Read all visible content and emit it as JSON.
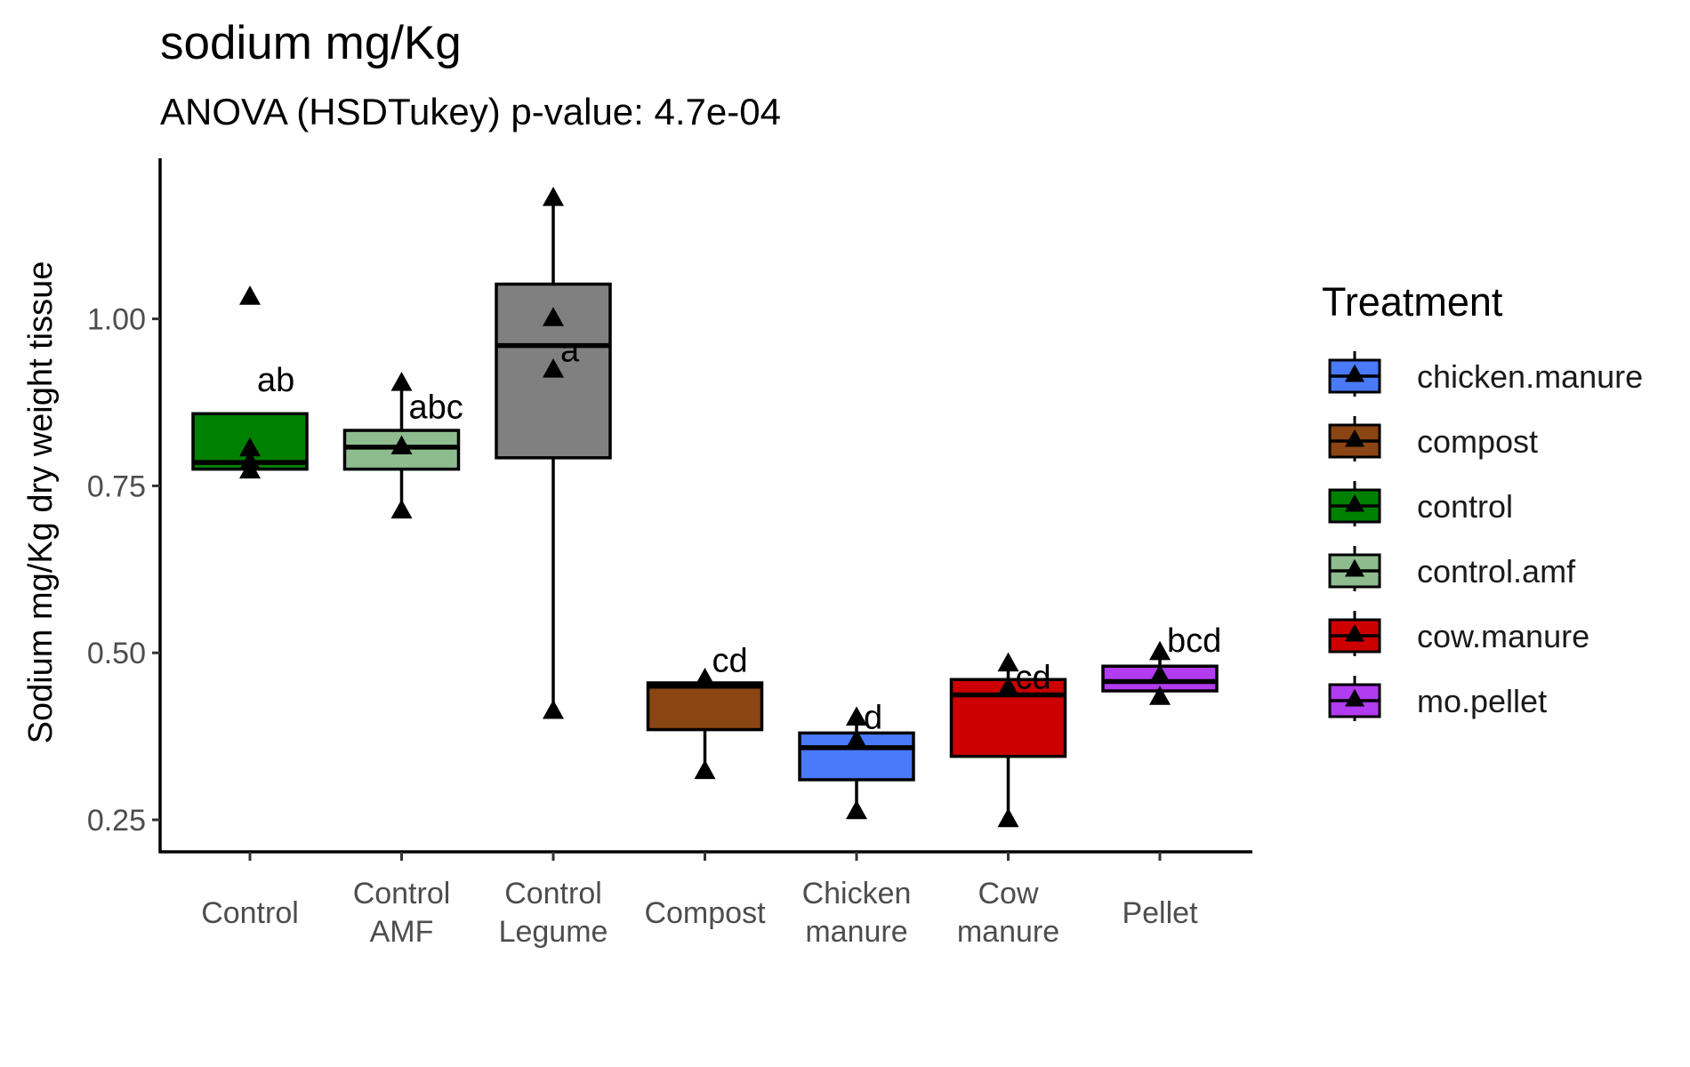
{
  "chart_data": {
    "type": "box",
    "title": "sodium mg/Kg",
    "subtitle": "ANOVA (HSDTukey) p-value: 4.7e-04",
    "ylabel": "Sodium mg/Kg dry weight tissue",
    "xlabel": "",
    "ylim": [
      0.2,
      1.25
    ],
    "yticks": [
      0.25,
      0.5,
      0.75,
      1.0
    ],
    "ytick_labels": [
      "0.25",
      "0.50",
      "0.75",
      "1.00"
    ],
    "grid": false,
    "legend": {
      "title": "Treatment",
      "position": "right",
      "entries": [
        {
          "label": "chicken.manure",
          "color": "#4a79fa"
        },
        {
          "label": "compost",
          "color": "#8b4513"
        },
        {
          "label": "control",
          "color": "#008000"
        },
        {
          "label": "control.amf",
          "color": "#8fbc8f"
        },
        {
          "label": "cow.manure",
          "color": "#cc0000"
        },
        {
          "label": "mo.pellet",
          "color": "#b23cf0"
        }
      ]
    },
    "groups": [
      {
        "category": [
          "Control"
        ],
        "treatment": "control",
        "color": "#008000",
        "q1": 0.775,
        "median": 0.785,
        "q3": 0.858,
        "whisker_low": 0.775,
        "whisker_high": 0.858,
        "points": [
          1.032,
          0.805,
          0.785,
          0.772
        ],
        "letter": "ab",
        "letter_y": 0.91
      },
      {
        "category": [
          "Control",
          "AMF"
        ],
        "treatment": "control.amf",
        "color": "#8fbc8f",
        "q1": 0.775,
        "median": 0.808,
        "q3": 0.833,
        "whisker_low": 0.712,
        "whisker_high": 0.903,
        "points": [
          0.903,
          0.808,
          0.712
        ],
        "letter": "abc",
        "letter_y": 0.87
      },
      {
        "category": [
          "Control",
          "Legume"
        ],
        "treatment": "control",
        "color": "#808080",
        "q1": 0.792,
        "median": 0.96,
        "q3": 1.052,
        "whisker_low": 0.412,
        "whisker_high": 1.18,
        "points": [
          1.18,
          1.0,
          0.923,
          0.412
        ],
        "letter": "a",
        "letter_y": 0.955
      },
      {
        "category": [
          "Compost"
        ],
        "treatment": "compost",
        "color": "#8b4513",
        "q1": 0.385,
        "median": 0.45,
        "q3": 0.455,
        "whisker_low": 0.322,
        "whisker_high": 0.455,
        "points": [
          0.46,
          0.322
        ],
        "letter": "cd",
        "letter_y": 0.49
      },
      {
        "category": [
          "Chicken",
          "manure"
        ],
        "treatment": "chicken.manure",
        "color": "#4a79fa",
        "q1": 0.31,
        "median": 0.358,
        "q3": 0.38,
        "whisker_low": 0.262,
        "whisker_high": 0.402,
        "points": [
          0.402,
          0.368,
          0.262
        ],
        "letter": "d",
        "letter_y": 0.405
      },
      {
        "category": [
          "Cow",
          "manure"
        ],
        "treatment": "cow.manure",
        "color": "#cc0000",
        "q1": 0.345,
        "median": 0.437,
        "q3": 0.46,
        "whisker_low": 0.25,
        "whisker_high": 0.483,
        "points": [
          0.483,
          0.447,
          0.25
        ],
        "letter": "cd",
        "letter_y": 0.465
      },
      {
        "category": [
          "Pellet"
        ],
        "treatment": "mo.pellet",
        "color": "#b23cf0",
        "q1": 0.443,
        "median": 0.457,
        "q3": 0.48,
        "whisker_low": 0.433,
        "whisker_high": 0.5,
        "points": [
          0.5,
          0.465,
          0.433
        ],
        "letter": "bcd",
        "letter_y": 0.52
      }
    ]
  }
}
